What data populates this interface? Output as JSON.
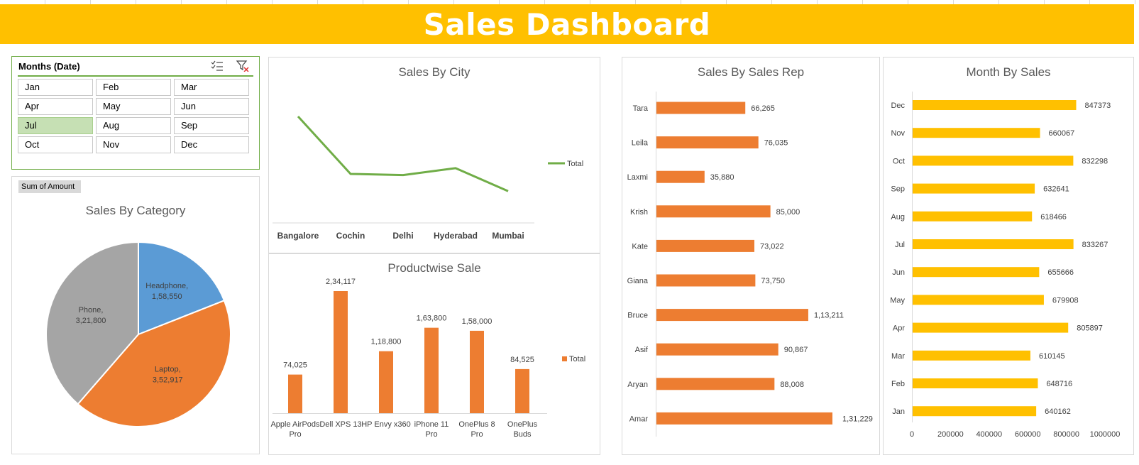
{
  "dashboard": {
    "title": "Sales Dashboard"
  },
  "slicer": {
    "header": "Months (Date)",
    "items": [
      "Jan",
      "Feb",
      "Mar",
      "Apr",
      "May",
      "Jun",
      "Jul",
      "Aug",
      "Sep",
      "Oct",
      "Nov",
      "Dec"
    ],
    "selected": "Jul",
    "icons": [
      "multi-select-icon",
      "clear-filter-icon"
    ]
  },
  "pivot_field_button": "Sum of Amount",
  "colors": {
    "title_bar": "#ffc000",
    "orange": "#ed7d31",
    "blue": "#5b9bd5",
    "gray": "#a5a5a5",
    "green": "#70ad47",
    "gold": "#ffc000"
  },
  "chart_data": [
    {
      "id": "city",
      "type": "line",
      "title": "Sales By City",
      "categories": [
        "Bangalore",
        "Cochin",
        "Delhi",
        "Hyderabad",
        "Mumbai"
      ],
      "series": [
        {
          "name": "Total",
          "values": [
            460000,
            210000,
            205000,
            235000,
            135000
          ]
        }
      ],
      "legend": "right",
      "grid": false
    },
    {
      "id": "category",
      "type": "pie",
      "title": "Sales By Category",
      "slices": [
        {
          "label": "Headphone",
          "value": 158550,
          "display": "1,58,550",
          "color": "#5b9bd5"
        },
        {
          "label": "Laptop",
          "value": 352917,
          "display": "3,52,917",
          "color": "#ed7d31"
        },
        {
          "label": "Phone",
          "value": 321800,
          "display": "3,21,800",
          "color": "#a5a5a5"
        }
      ]
    },
    {
      "id": "product",
      "type": "bar",
      "title": "Productwise Sale",
      "categories": [
        "Apple AirPods Pro",
        "Dell XPS 13",
        "HP Envy x360",
        "iPhone 11 Pro",
        "OnePlus 8 Pro",
        "OnePlus Buds"
      ],
      "series": [
        {
          "name": "Total",
          "values": [
            74025,
            234117,
            118800,
            163800,
            158000,
            84525
          ],
          "labels": [
            "74,025",
            "2,34,117",
            "1,18,800",
            "1,63,800",
            "1,58,000",
            "84,525"
          ]
        }
      ],
      "legend": "right",
      "grid": false
    },
    {
      "id": "rep",
      "type": "bar",
      "orientation": "horizontal",
      "title": "Sales By Sales Rep",
      "categories": [
        "Tara",
        "Leila",
        "Laxmi",
        "Krish",
        "Kate",
        "Giana",
        "Bruce",
        "Asif",
        "Aryan",
        "Amar"
      ],
      "values": [
        66265,
        76035,
        35880,
        85000,
        73022,
        73750,
        113211,
        90867,
        88008,
        131229
      ],
      "labels": [
        "66,265",
        "76,035",
        "35,880",
        "85,000",
        "73,022",
        "73,750",
        "1,13,211",
        "90,867",
        "88,008",
        "1,31,229"
      ]
    },
    {
      "id": "month",
      "type": "bar",
      "orientation": "horizontal",
      "title": "Month By Sales",
      "categories": [
        "Dec",
        "Nov",
        "Oct",
        "Sep",
        "Aug",
        "Jul",
        "Jun",
        "May",
        "Apr",
        "Mar",
        "Feb",
        "Jan"
      ],
      "values": [
        847373,
        660067,
        832298,
        632641,
        618466,
        833267,
        655666,
        679908,
        805897,
        610145,
        648716,
        640162
      ],
      "xlim": [
        0,
        1000000
      ],
      "xticks": [
        "0",
        "200000",
        "400000",
        "600000",
        "800000",
        "1000000"
      ]
    }
  ]
}
